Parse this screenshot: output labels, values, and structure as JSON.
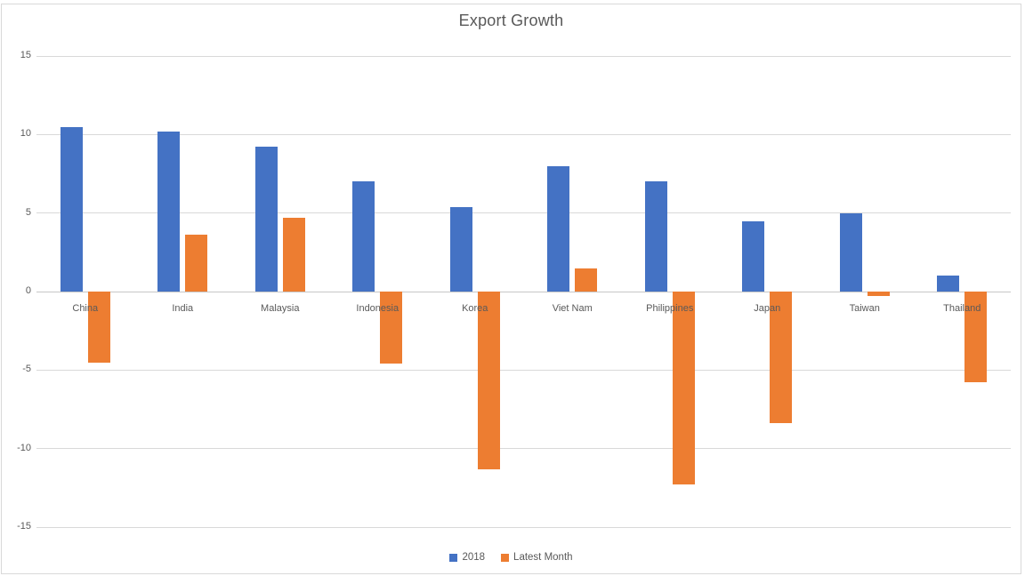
{
  "chart_data": {
    "type": "bar",
    "title": "Export Growth",
    "categories": [
      "China",
      "India",
      "Malaysia",
      "Indonesia",
      "Korea",
      "Viet Nam",
      "Philippines",
      "Japan",
      "Taiwan",
      "Thailand"
    ],
    "series": [
      {
        "name": "2018",
        "color": "#4472C4",
        "values": [
          10.5,
          10.2,
          9.2,
          7.0,
          5.4,
          8.0,
          7.0,
          4.5,
          5.0,
          1.0
        ]
      },
      {
        "name": "Latest Month",
        "color": "#ED7D31",
        "values": [
          -4.5,
          3.6,
          4.7,
          -4.6,
          -11.3,
          1.5,
          -12.3,
          -8.4,
          -0.3,
          -5.8
        ]
      }
    ],
    "ylim": [
      -15,
      15
    ],
    "yticks": [
      15,
      10,
      5,
      0,
      -5,
      -10,
      -15
    ],
    "grid": true,
    "legend_position": "bottom",
    "colors": {
      "gridline": "#D9D9D9",
      "zero_axis": "#C6C6C6",
      "text": "#595959",
      "background": "#FFFFFF",
      "border": "#D9D9D9"
    }
  }
}
